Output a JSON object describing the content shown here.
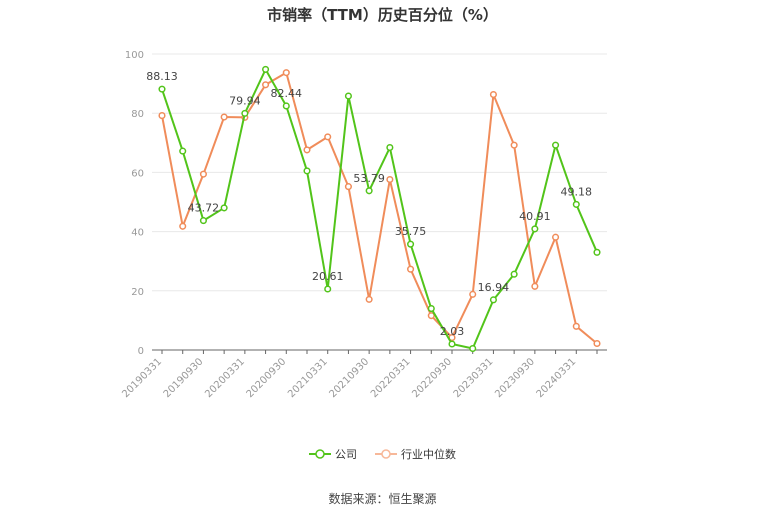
{
  "chart_data": {
    "type": "line",
    "title": "市销率（TTM）历史百分位（%）",
    "x": [
      "20190331",
      "20190630",
      "20190930",
      "20191231",
      "20200331",
      "20200630",
      "20200930",
      "20201231",
      "20210331",
      "20210630",
      "20210930",
      "20211231",
      "20220331",
      "20220630",
      "20220930",
      "20221231",
      "20230331",
      "20230630",
      "20230930",
      "20231231",
      "20240331",
      "20240630"
    ],
    "x_tick_labels": [
      "20190331",
      "20190930",
      "20200331",
      "20200930",
      "20210331",
      "20210930",
      "20220331",
      "20220930",
      "20230331",
      "20230930",
      "20240331"
    ],
    "ylim": [
      0,
      100
    ],
    "y_ticks": [
      0,
      20,
      40,
      60,
      80,
      100
    ],
    "grid": true,
    "legend_position": "bottom",
    "series": [
      {
        "name": "公司",
        "color": "#52c41a",
        "values": [
          88.13,
          67.2,
          43.72,
          48.0,
          79.94,
          94.8,
          82.44,
          60.5,
          20.61,
          85.8,
          53.79,
          68.4,
          35.75,
          14.0,
          2.03,
          0.5,
          16.94,
          25.6,
          40.91,
          69.2,
          49.18,
          33.0
        ],
        "labels": {
          "0": "88.13",
          "2": "43.72",
          "4": "79.94",
          "6": "82.44",
          "8": "20.61",
          "10": "53.79",
          "12": "35.75",
          "14": "2.03",
          "16": "16.94",
          "18": "40.91",
          "20": "49.18"
        }
      },
      {
        "name": "行业中位数",
        "color": "#f08c5a",
        "values": [
          79.2,
          41.8,
          59.4,
          78.7,
          78.6,
          89.6,
          93.7,
          67.6,
          72.0,
          55.2,
          17.1,
          57.6,
          27.3,
          11.6,
          4.2,
          18.8,
          86.3,
          69.2,
          21.5,
          38.1,
          8.0,
          2.2
        ]
      }
    ]
  },
  "source_text": "数据来源：恒生聚源"
}
